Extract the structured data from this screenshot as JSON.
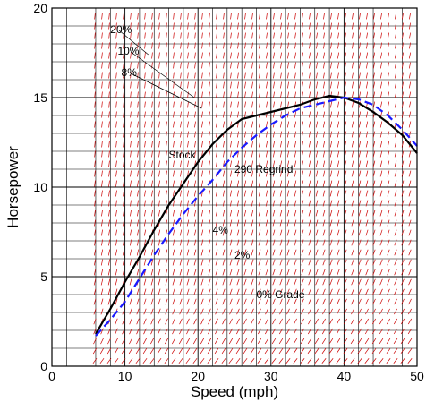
{
  "chart_data": {
    "type": "line",
    "title": "",
    "xlabel": "Speed (mph)",
    "ylabel": "Horsepower",
    "xlim": [
      0,
      50
    ],
    "ylim": [
      0,
      20
    ],
    "x_ticks": [
      "0",
      "10",
      "20",
      "30",
      "40",
      "50"
    ],
    "y_ticks": [
      "0",
      "5",
      "10",
      "15",
      "20"
    ],
    "grid": true,
    "series": [
      {
        "name": "Stock",
        "color": "#000000",
        "style": "solid",
        "x": [
          6,
          8,
          10,
          12,
          14,
          16,
          18,
          20,
          22,
          24,
          26,
          28,
          30,
          32,
          34,
          36,
          38,
          40,
          42,
          44,
          46,
          48,
          50
        ],
        "y": [
          1.8,
          3.2,
          4.7,
          6.1,
          7.6,
          9.0,
          10.2,
          11.4,
          12.4,
          13.2,
          13.8,
          14.0,
          14.2,
          14.4,
          14.6,
          14.9,
          15.1,
          15.0,
          14.7,
          14.2,
          13.6,
          12.9,
          11.9
        ]
      },
      {
        "name": "290 Regrind",
        "color": "#1a1aff",
        "style": "dashed",
        "x": [
          6,
          8,
          10,
          12,
          14,
          16,
          18,
          20,
          22,
          24,
          26,
          28,
          30,
          32,
          34,
          36,
          38,
          40,
          42,
          44,
          46,
          48,
          50
        ],
        "y": [
          1.7,
          2.6,
          3.6,
          4.9,
          6.2,
          7.4,
          8.5,
          9.5,
          10.4,
          11.4,
          12.2,
          12.9,
          13.5,
          14.0,
          14.4,
          14.6,
          14.8,
          15.0,
          14.9,
          14.6,
          14.0,
          13.2,
          12.3
        ]
      }
    ],
    "annotations": [
      {
        "text": "20%",
        "x": 8,
        "y": 18.6
      },
      {
        "text": "10%",
        "x": 9,
        "y": 17.4
      },
      {
        "text": "8%",
        "x": 9.5,
        "y": 16.2
      },
      {
        "text": "Stock",
        "x": 16,
        "y": 11.6
      },
      {
        "text": "290 Regrind",
        "x": 25,
        "y": 10.8
      },
      {
        "text": "4%",
        "x": 22,
        "y": 7.4
      },
      {
        "text": "2%",
        "x": 25,
        "y": 6.0
      },
      {
        "text": "0% Grade",
        "x": 28,
        "y": 3.8
      }
    ],
    "colors": {
      "grid": "#000000",
      "grade_field": "#cc0000"
    }
  }
}
